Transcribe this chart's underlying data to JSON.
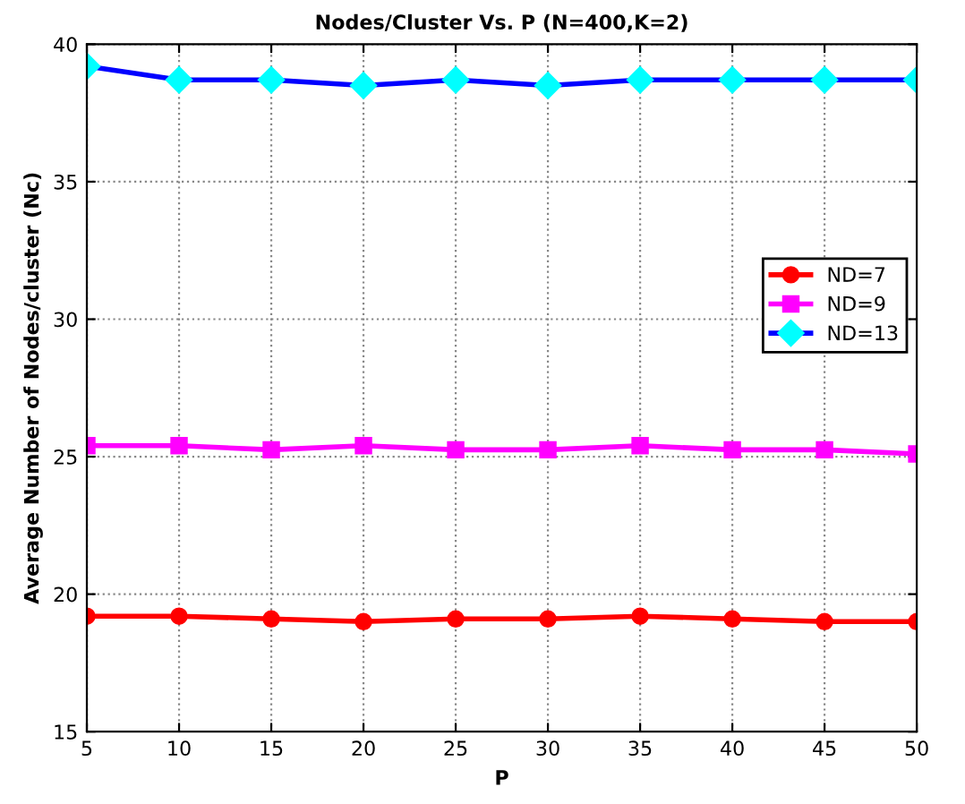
{
  "chart_data": {
    "type": "line",
    "title": "Nodes/Cluster Vs. P (N=400,K=2)",
    "xlabel": "P",
    "ylabel": "Average Number of Nodes/cluster (Nc)",
    "x": [
      5,
      10,
      15,
      20,
      25,
      30,
      35,
      40,
      45,
      50
    ],
    "series": [
      {
        "name": "ND=7",
        "color": "#ff0000",
        "marker": "circle",
        "values": [
          19.2,
          19.2,
          19.1,
          19.0,
          19.1,
          19.1,
          19.2,
          19.1,
          19.0,
          19.0
        ]
      },
      {
        "name": "ND=9",
        "color": "#ff00ff",
        "marker": "square",
        "values": [
          25.4,
          25.4,
          25.25,
          25.4,
          25.25,
          25.25,
          25.4,
          25.25,
          25.25,
          25.1
        ]
      },
      {
        "name": "ND=13",
        "color": "#0000ff",
        "marker": "diamond",
        "values": [
          39.2,
          38.7,
          38.7,
          38.5,
          38.7,
          38.5,
          38.7,
          38.7,
          38.7,
          38.7
        ]
      }
    ],
    "xlim": [
      5,
      50
    ],
    "xticks": [
      5,
      10,
      15,
      20,
      25,
      30,
      35,
      40,
      45,
      50
    ],
    "ylim": [
      15,
      40
    ],
    "yticks": [
      15,
      20,
      25,
      30,
      35,
      40
    ],
    "grid": true,
    "legend": "right",
    "line_style": "solid"
  }
}
